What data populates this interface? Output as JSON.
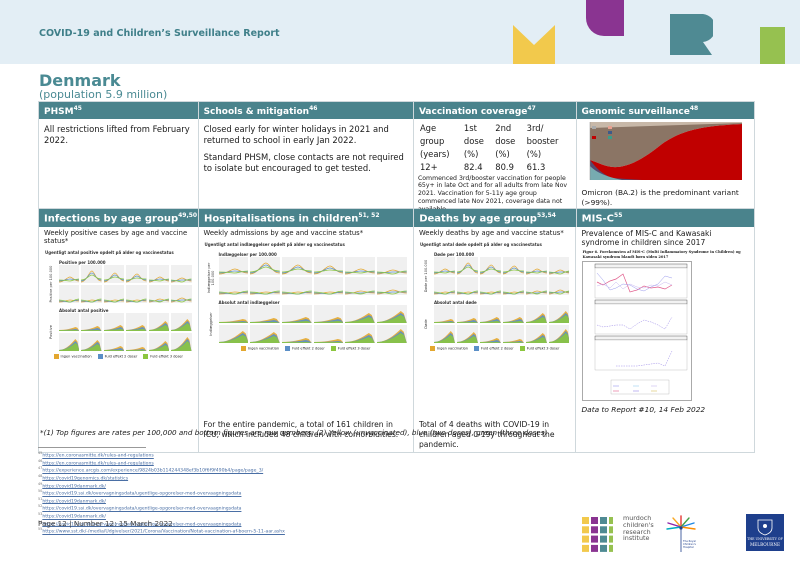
{
  "header": {
    "report_title": "COVID-19 and Children’s Surveillance Report",
    "brand_colors": {
      "yellow": "#f2c94c",
      "purple": "#8a3491",
      "teal": "#4f8a93",
      "green": "#96c150"
    }
  },
  "country": {
    "name": "Denmark",
    "population": "(population 5.9 million)"
  },
  "sections": {
    "phsm": {
      "title": "PHSM",
      "ref": "45",
      "text": "All restrictions lifted from February 2022."
    },
    "schools": {
      "title": "Schools & mitigation",
      "ref": "46",
      "paragraphs": [
        "Closed early for winter holidays in 2021 and returned to school in early Jan 2022.",
        "Standard PHSM, close contacts are not required to isolate but encouraged to get tested."
      ]
    },
    "vaccination": {
      "title": "Vaccination coverage",
      "ref": "47",
      "table": {
        "headers": [
          [
            "Age",
            "1st",
            "2nd",
            "3rd/"
          ],
          [
            "group",
            "dose",
            "dose",
            "booster"
          ],
          [
            "(years)",
            "(%)",
            "(%)",
            "(%)"
          ]
        ],
        "rows": [
          [
            "12+",
            "82.4",
            "80.9",
            "61.3"
          ]
        ]
      },
      "note": "Commenced 3rd/booster vaccination for people 65y+ in late Oct and for all adults from late Nov 2021. Vaccination for 5-11y age group commenced late Nov 2021, coverage data not available."
    },
    "genomic": {
      "title": "Genomic surveillance",
      "ref": "48",
      "text": "Omicron (BA.2) is the predominant variant (>99%)."
    },
    "infections": {
      "title": "Infections by age group",
      "ref": "49,50",
      "subtitle": "Weekly positive cases by age and vaccine status*",
      "figure_title": "Ugentligt antal positive opdelt på alder og vaccinestatus",
      "top_panel": "Positive per 100.000",
      "bottom_panel": "Absolut antal positive",
      "y_top": "Positive per 100.000",
      "y_bottom": "Positive"
    },
    "hospitalisations": {
      "title": "Hospitalisations in children",
      "ref": "51, 52",
      "subtitle": "Weekly admissions by age and vaccine status*",
      "figure_title": "Ugentligt antal indlæggelser opdelt på alder og vaccinestatus",
      "top_panel": "Indlæggelser per 100.000",
      "bottom_panel": "Absolut antal indlæggelser",
      "y_top": "Indlæggelser per 100.000",
      "y_bottom": "Indlæggelser",
      "note": "For the entire pandemic, a total of 161 children in ICU, which included 48 children with comorbidities."
    },
    "deaths": {
      "title": "Deaths by age group",
      "ref": "53,54",
      "subtitle": "Weekly deaths by age and vaccine status*",
      "figure_title": "Ugentligt antal døde opdelt på alder og vaccinestatus",
      "top_panel": "Døde per 100.000",
      "bottom_panel": "Absolut antal døde",
      "y_top": "Døde per 100.000",
      "y_bottom": "Døde",
      "note": "Total of 4 deaths with COVID-19 in children aged 0-19y throughout the pandemic."
    },
    "misc": {
      "title": "MIS-C",
      "ref": "55",
      "subtitle": "Prevalence of MIS-C and Kawasaki syndrome in children since 2017",
      "figure_caption": "Figur 6. Forekomsten af MIS-C (Multi Inflammatory Syndrome in Children) og Kawasaki syndrom blandt børn siden 2017",
      "data_note": "Data to Report #10, 14 Feb 2022"
    }
  },
  "legend": {
    "items": [
      {
        "label": "Ingen vaccination",
        "color": "#e3a72f"
      },
      {
        "label": "Fuld effekt 2 doser",
        "color": "#5b8fc7"
      },
      {
        "label": "Fuld effekt 3 doser",
        "color": "#8cc63f"
      }
    ]
  },
  "footnote": "*(1) Top figures are rates per 100,000 and bottom figures are raw numbers; (2) Yellow (unvaccinated), blue (two doses), green (three doses)",
  "references": [
    {
      "n": "45",
      "url": "https://en.coronasmitte.dk/rules-and-regulations"
    },
    {
      "n": "46",
      "url": "https://en.coronasmitte.dk/rules-and-regulations"
    },
    {
      "n": "47",
      "url": "https://experience.arcgis.com/experience/9824b03b114244348ef3b10f6f9f490b4/page/page_3/"
    },
    {
      "n": "48",
      "url": "https://covid19genomics.dk/statistics"
    },
    {
      "n": "49",
      "url": "https://covid19danmark.dk/"
    },
    {
      "n": "50",
      "url": "https://covid19.ssi.dk/overvagningsdata/ugentlige-opgorelser-med-overvaagningsdata"
    },
    {
      "n": "51",
      "url": "https://covid19danmark.dk/"
    },
    {
      "n": "52",
      "url": "https://covid19.ssi.dk/overvagningsdata/ugentlige-opgorelser-med-overvaagningsdata"
    },
    {
      "n": "53",
      "url": "https://covid19danmark.dk/"
    },
    {
      "n": "54",
      "url": "https://covid19.ssi.dk/overvagningsdata/ugentlige-opgorelser-med-overvaagningsdata"
    },
    {
      "n": "55",
      "url": "https://www.sst.dk/-/media/Udgivelser/2021/Corona/Vaccination/Notat-vaccination-af-boern-5-11-aar.ashx"
    }
  ],
  "footer": {
    "page": "Page 12  |  Number 12: 15 March 2022",
    "mcri_lines": [
      "murdoch",
      "children's",
      "research",
      "institute"
    ],
    "rch_label": "The Royal Children's Hospital Melbourne",
    "uom_top": "THE UNIVERSITY OF",
    "uom_bottom": "MELBOURNE"
  }
}
